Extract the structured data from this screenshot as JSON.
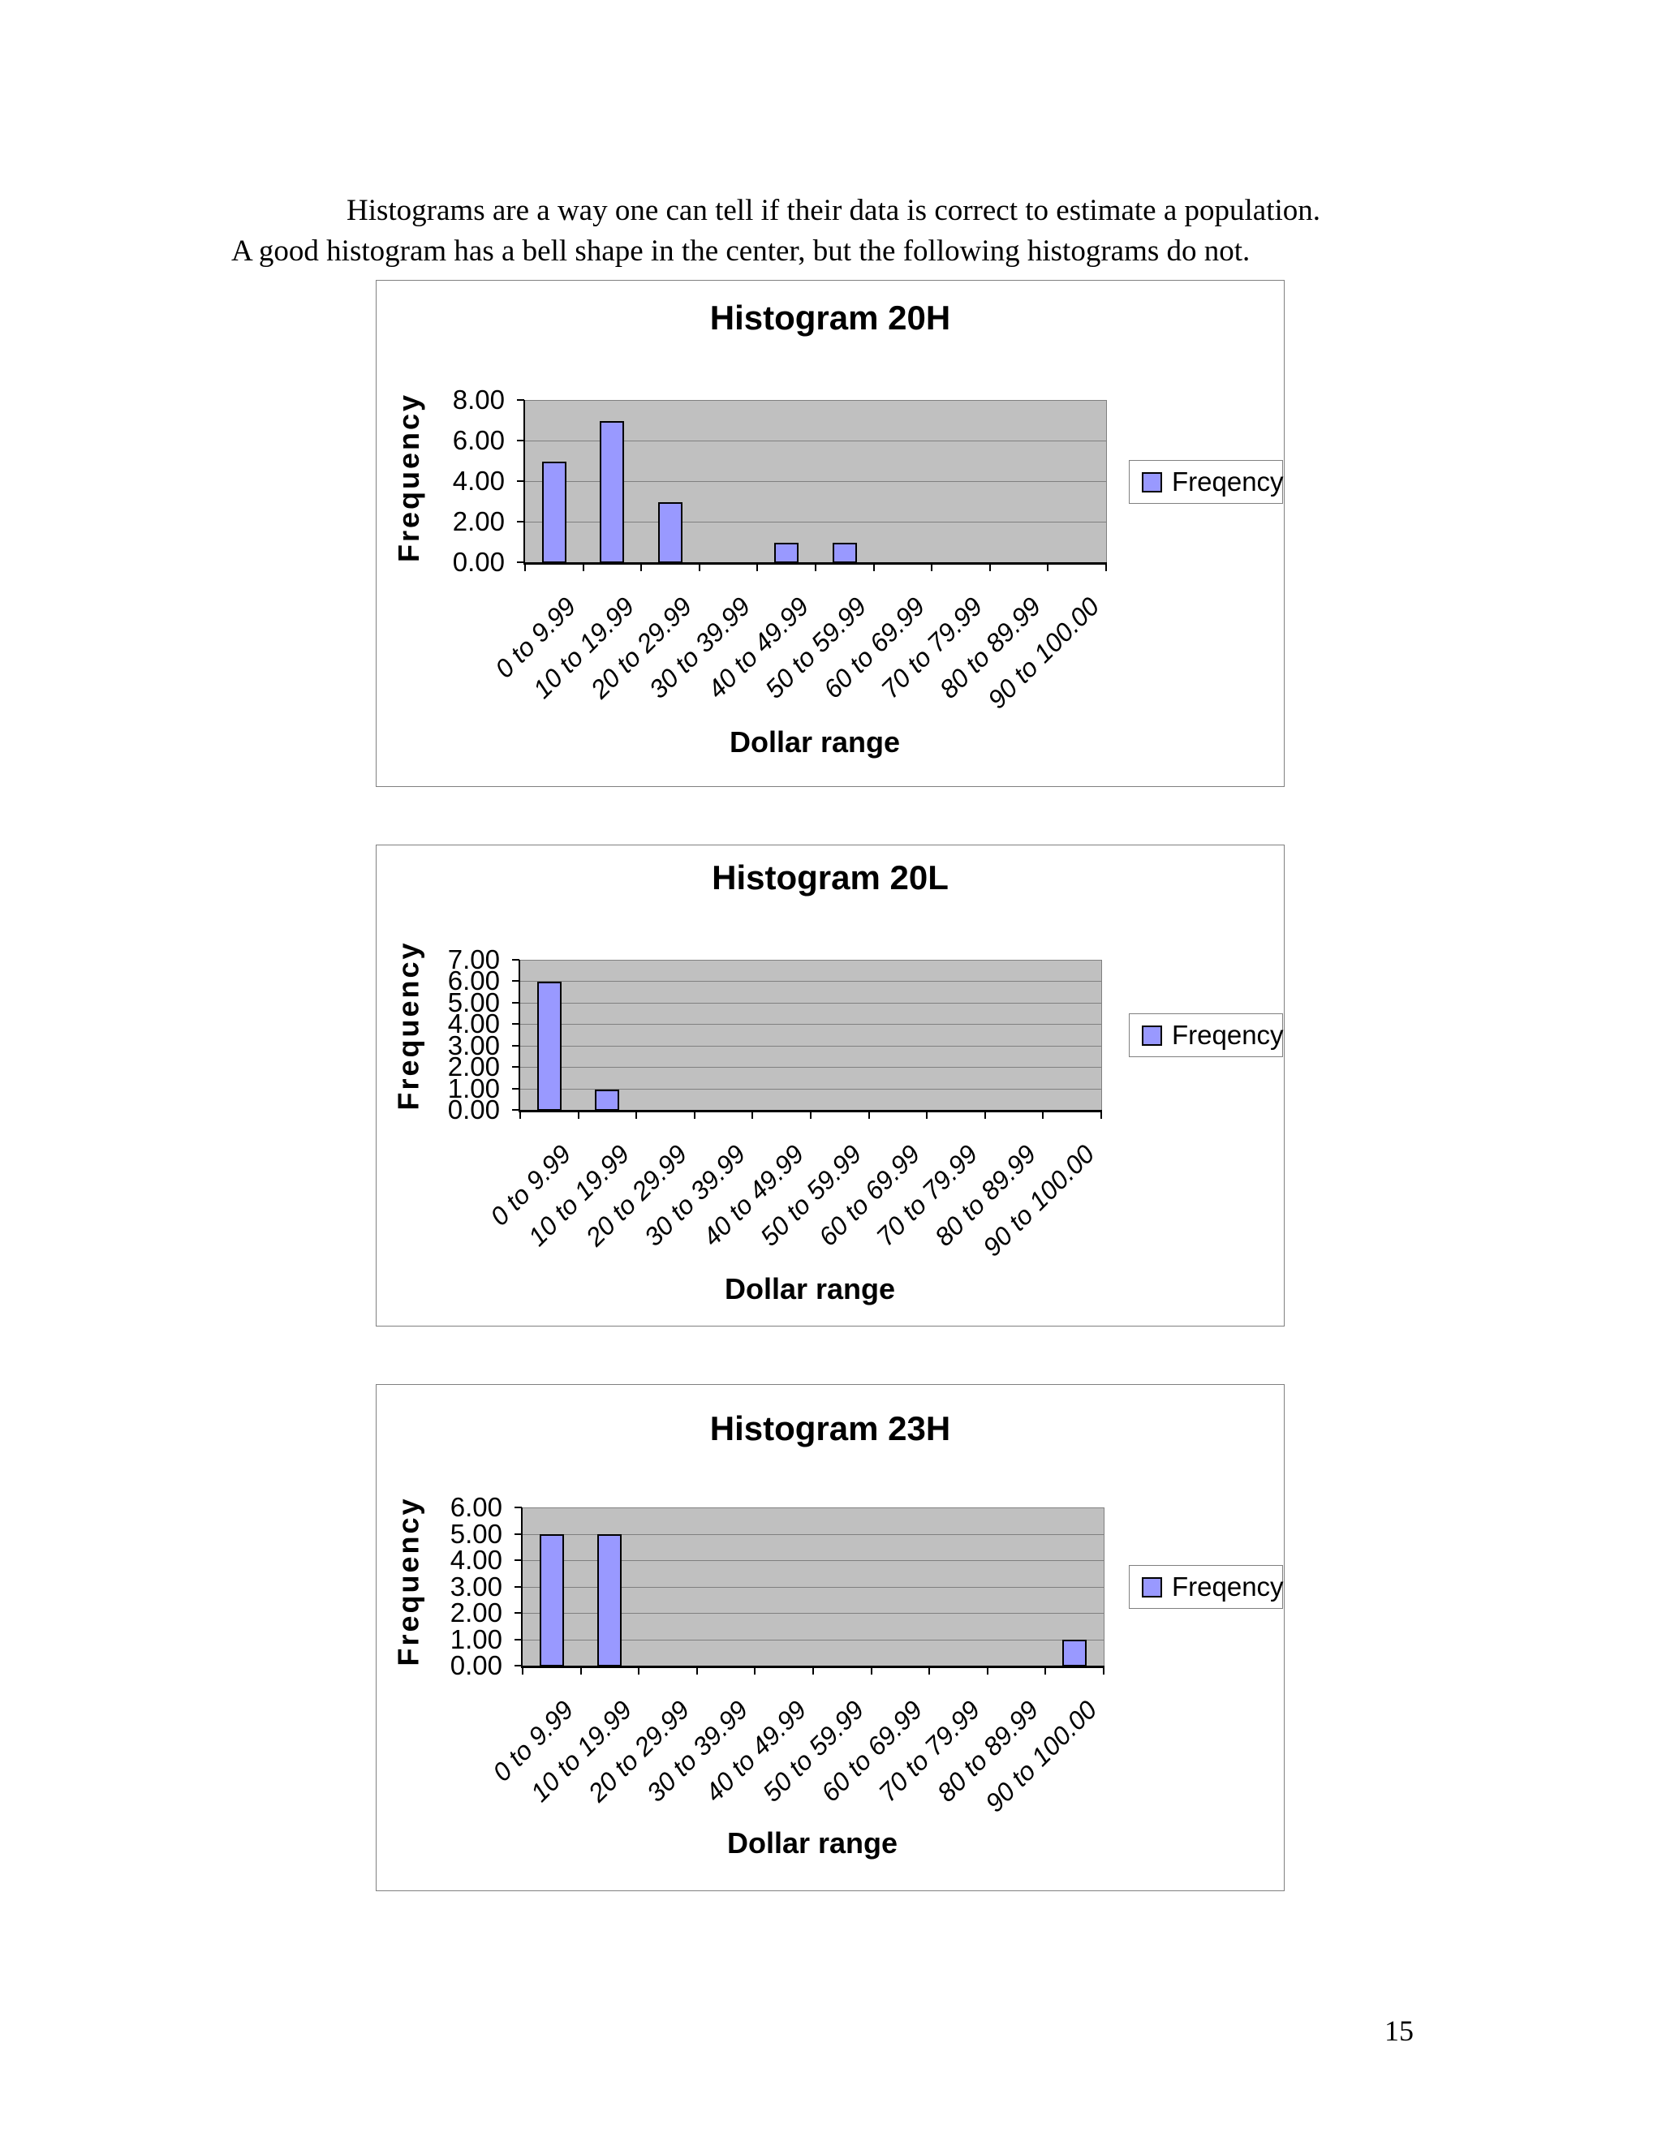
{
  "intro": {
    "line1": "Histograms are a way one can tell if their data is correct to estimate a population.",
    "line2": "A good histogram has a bell shape in the center, but the following histograms do not."
  },
  "page": {
    "number": "15"
  },
  "colors": {
    "bar_fill": "#9999FF",
    "plot_background": "#C0C0C0",
    "gridline": "#808080",
    "chart_border": "#808080",
    "axis": "#000000"
  },
  "chart_data": [
    {
      "type": "bar",
      "title": "Histogram 20H",
      "xlabel": "Dollar range",
      "ylabel": "Frequency",
      "legend": [
        "Freqency"
      ],
      "legend_position": "right",
      "grid": true,
      "categories": [
        "0 to 9.99",
        "10 to 19.99",
        "20 to 29.99",
        "30 to 39.99",
        "40 to 49.99",
        "50 to 59.99",
        "60 to 69.99",
        "70 to 79.99",
        "80 to 89.99",
        "90 to 100.00"
      ],
      "values": [
        5,
        7,
        3,
        0,
        1,
        1,
        0,
        0,
        0,
        0
      ],
      "ylim": [
        0,
        8
      ],
      "ytick_step": 2,
      "ytick_labels": [
        "0.00",
        "2.00",
        "4.00",
        "6.00",
        "8.00"
      ]
    },
    {
      "type": "bar",
      "title": "Histogram 20L",
      "xlabel": "Dollar range",
      "ylabel": "Frequency",
      "legend": [
        "Freqency"
      ],
      "legend_position": "right",
      "grid": true,
      "categories": [
        "0 to 9.99",
        "10 to 19.99",
        "20 to 29.99",
        "30 to 39.99",
        "40 to 49.99",
        "50 to 59.99",
        "60 to 69.99",
        "70 to 79.99",
        "80 to 89.99",
        "90 to 100.00"
      ],
      "values": [
        6,
        1,
        0,
        0,
        0,
        0,
        0,
        0,
        0,
        0
      ],
      "ylim": [
        0,
        7
      ],
      "ytick_step": 1,
      "ytick_labels": [
        "0.00",
        "1.00",
        "2.00",
        "3.00",
        "4.00",
        "5.00",
        "6.00",
        "7.00"
      ]
    },
    {
      "type": "bar",
      "title": "Histogram 23H",
      "xlabel": "Dollar range",
      "ylabel": "Frequency",
      "legend": [
        "Freqency"
      ],
      "legend_position": "right",
      "grid": true,
      "categories": [
        "0 to 9.99",
        "10 to 19.99",
        "20 to 29.99",
        "30 to 39.99",
        "40 to 49.99",
        "50 to 59.99",
        "60 to 69.99",
        "70 to 79.99",
        "80 to 89.99",
        "90 to 100.00"
      ],
      "values": [
        5,
        5,
        0,
        0,
        0,
        0,
        0,
        0,
        0,
        1
      ],
      "ylim": [
        0,
        6
      ],
      "ytick_step": 1,
      "ytick_labels": [
        "0.00",
        "1.00",
        "2.00",
        "3.00",
        "4.00",
        "5.00",
        "6.00"
      ]
    }
  ]
}
